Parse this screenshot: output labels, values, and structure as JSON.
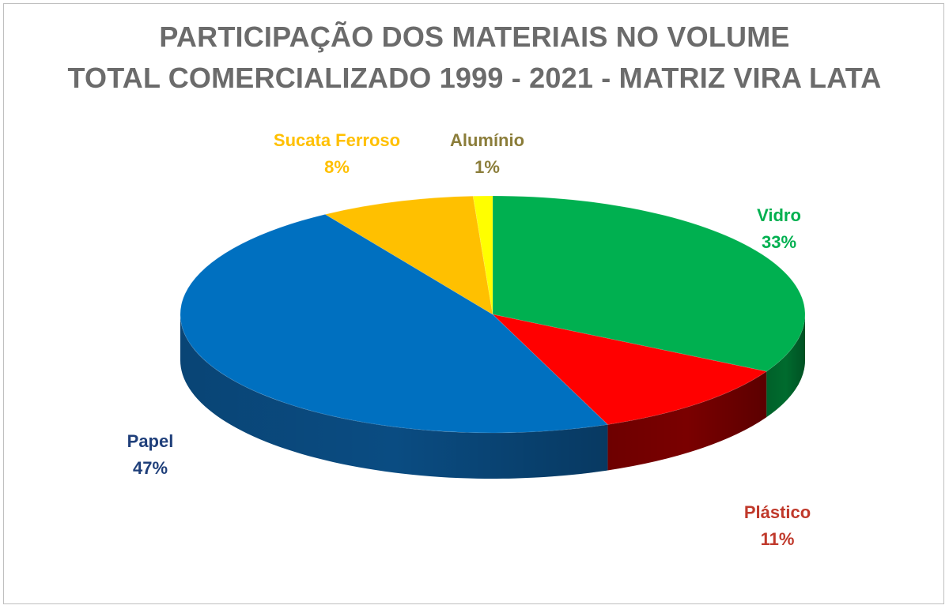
{
  "chart_data": {
    "type": "pie",
    "title_lines": [
      "PARTICIPAÇÃO DOS MATERIAIS NO VOLUME",
      "TOTAL COMERCIALIZADO  1999 - 2021 - MATRIZ VIRA LATA"
    ],
    "slices": [
      {
        "label": "Vidro",
        "value": 33,
        "display": "33%",
        "color": "#00B050",
        "side_color": "#006B2E",
        "label_color": "#00B050"
      },
      {
        "label": "Plástico",
        "value": 11,
        "display": "11%",
        "color": "#FF0000",
        "side_color": "#7A0000",
        "label_color": "#C0392B"
      },
      {
        "label": "Papel",
        "value": 47,
        "display": "47%",
        "color": "#0070C0",
        "side_color": "#0A4C82",
        "label_color": "#1F3F7A"
      },
      {
        "label": "Sucata Ferroso",
        "value": 8,
        "display": "8%",
        "color": "#FFC000",
        "side_color": "#B38600",
        "label_color": "#FFC000"
      },
      {
        "label": "Alumínio",
        "value": 1,
        "display": "1%",
        "color": "#FFFF00",
        "side_color": "#B3B300",
        "label_color": "#8B7D3A"
      }
    ],
    "legend": "none",
    "style": "3d"
  }
}
